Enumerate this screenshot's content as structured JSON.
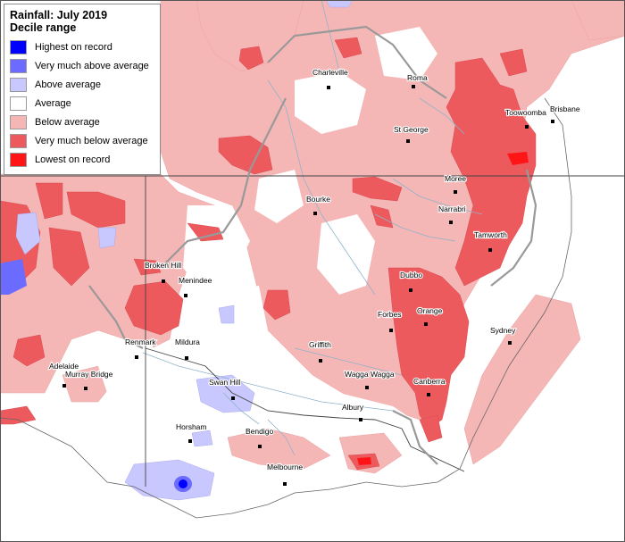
{
  "title": "Rainfall: July 2019",
  "subtitle": "Decile range",
  "legend": [
    {
      "label": "Highest on record",
      "color": "#0000ff"
    },
    {
      "label": "Very much above average",
      "color": "#6b6bff"
    },
    {
      "label": "Above average",
      "color": "#c8c8ff"
    },
    {
      "label": "Average",
      "color": "#ffffff"
    },
    {
      "label": "Below average",
      "color": "#f5b6b6"
    },
    {
      "label": "Very much below average",
      "color": "#ec5a5e"
    },
    {
      "label": "Lowest on record",
      "color": "#ff1515"
    }
  ],
  "places": [
    "Charleville",
    "Roma",
    "Toowoomba",
    "Brisbane",
    "St George",
    "Moree",
    "Narrabri",
    "Bourke",
    "Tamworth",
    "Broken Hill",
    "Menindee",
    "Dubbo",
    "Orange",
    "Forbes",
    "Sydney",
    "Renmark",
    "Mildura",
    "Griffith",
    "Adelaide",
    "Murray Bridge",
    "Wagga Wagga",
    "Canberra",
    "Swan Hill",
    "Albury",
    "Horsham",
    "Bendigo",
    "Melbourne"
  ]
}
